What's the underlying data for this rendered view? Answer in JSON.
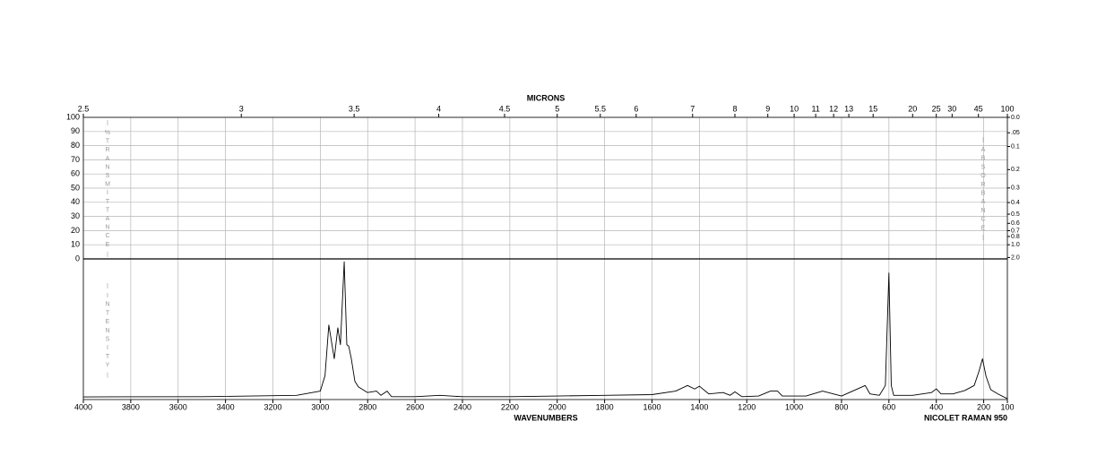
{
  "chart_data": {
    "type": "line",
    "x2_label": "MICRONS",
    "xlabel": "WAVENUMBERS",
    "annotation": "NICOLET RAMAN 950",
    "ylabel": "% TRANSMITTANCE",
    "y2label": "ABSORBANCE",
    "intensity_label": "INTENSITY",
    "xlim": [
      4000,
      100
    ],
    "xticks": [
      4000,
      3800,
      3600,
      3400,
      3200,
      3000,
      2800,
      2600,
      2400,
      2200,
      2000,
      1800,
      1600,
      1400,
      1200,
      1000,
      800,
      600,
      400,
      200,
      100
    ],
    "x2ticks": [
      2.5,
      3,
      3.5,
      4,
      4.5,
      5,
      5.5,
      6,
      7,
      8,
      9,
      10,
      11,
      12,
      13,
      15,
      20,
      25,
      30,
      45,
      100
    ],
    "ylim": [
      0,
      100
    ],
    "yticks": [
      0,
      10,
      20,
      30,
      40,
      50,
      60,
      70,
      80,
      90,
      100
    ],
    "y2ticks": [
      {
        "value": 0,
        "label": "0.0"
      },
      {
        "value": 0.05,
        "label": ".05"
      },
      0.1,
      0.2,
      0.3,
      0.4,
      0.5,
      0.6,
      0.7,
      0.8,
      {
        "value": 1,
        "label": "1.0"
      },
      {
        "value": 2,
        "label": "2.0"
      }
    ],
    "intensity_lim": [
      0,
      100
    ],
    "grid": true,
    "color": "#000000",
    "x": [
      4000,
      3500,
      3100,
      3000,
      2980,
      2964,
      2941,
      2926,
      2915,
      2899,
      2888,
      2880,
      2869,
      2854,
      2839,
      2801,
      2763,
      2744,
      2718,
      2699,
      2600,
      2495,
      2400,
      2200,
      2000,
      1800,
      1600,
      1500,
      1450,
      1420,
      1400,
      1360,
      1300,
      1270,
      1250,
      1220,
      1150,
      1100,
      1070,
      1050,
      950,
      880,
      800,
      700,
      680,
      640,
      615,
      600,
      590,
      580,
      500,
      420,
      400,
      380,
      330,
      280,
      240,
      220,
      205,
      190,
      170,
      140,
      100
    ],
    "values": [
      1.9,
      2,
      3,
      6,
      17,
      53,
      29,
      51,
      39,
      98,
      39,
      38,
      29,
      13,
      9,
      5,
      6,
      3,
      6,
      2,
      2,
      3,
      2,
      2,
      2.5,
      3,
      3.5,
      6,
      10,
      7.5,
      9.5,
      4,
      5,
      3,
      5.5,
      2,
      2.5,
      6,
      6,
      2.5,
      2.5,
      6,
      2.5,
      10,
      4,
      3,
      10,
      90,
      10,
      3,
      3,
      5,
      7.6,
      4,
      4,
      6.4,
      10,
      20,
      29,
      16.5,
      7,
      4,
      0.6
    ]
  }
}
